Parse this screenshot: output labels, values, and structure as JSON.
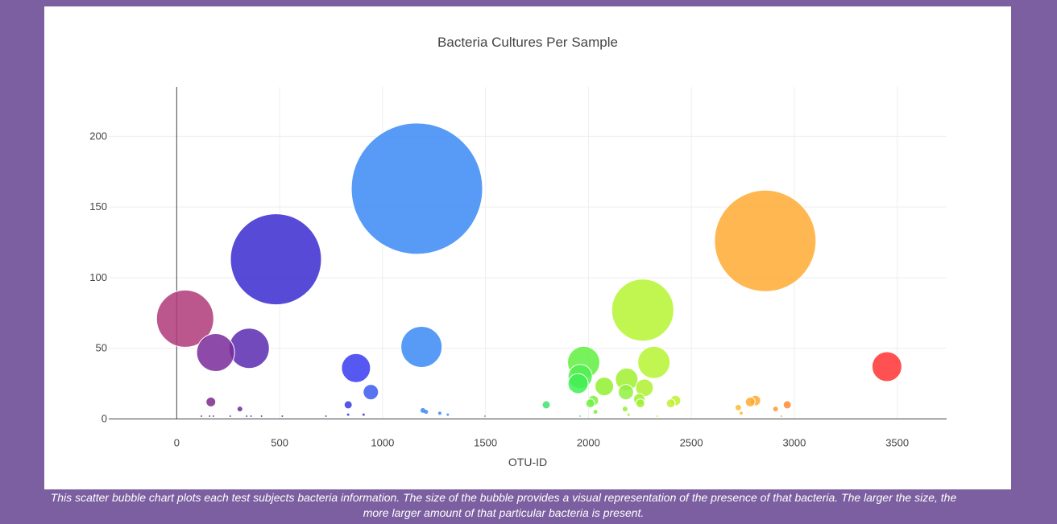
{
  "caption": "This scatter bubble chart plots each test subjects bacteria information. The size of the bubble provides a visual representation of the presence of that bacteria. The larger the size, the more larger amount of that particular bacteria is present.",
  "chart_data": {
    "type": "scatter",
    "title": "Bacteria Cultures Per Sample",
    "xlabel": "OTU-ID",
    "ylabel": "",
    "xlim": [
      -330,
      3740
    ],
    "ylim": [
      -10,
      235
    ],
    "xticks": [
      0,
      500,
      1000,
      1500,
      2000,
      2500,
      3000,
      3500
    ],
    "yticks": [
      0,
      50,
      100,
      150,
      200
    ],
    "grid": true,
    "points": [
      {
        "x": 41,
        "y": 71,
        "color": "#b03a7a"
      },
      {
        "x": 189,
        "y": 47,
        "color": "#7a2a9a"
      },
      {
        "x": 352,
        "y": 50,
        "color": "#5a2ab0"
      },
      {
        "x": 482,
        "y": 113,
        "color": "#3a2ad0"
      },
      {
        "x": 871,
        "y": 36,
        "color": "#3a3af0"
      },
      {
        "x": 943,
        "y": 19,
        "color": "#3a5af0"
      },
      {
        "x": 1167,
        "y": 163,
        "color": "#3a8af5"
      },
      {
        "x": 1189,
        "y": 51,
        "color": "#3a8af5"
      },
      {
        "x": 1977,
        "y": 40,
        "color": "#60f040"
      },
      {
        "x": 1960,
        "y": 30,
        "color": "#50f050"
      },
      {
        "x": 1950,
        "y": 25,
        "color": "#40f050"
      },
      {
        "x": 2264,
        "y": 77,
        "color": "#b5f530"
      },
      {
        "x": 2318,
        "y": 40,
        "color": "#b5f530"
      },
      {
        "x": 2186,
        "y": 28,
        "color": "#a0f030"
      },
      {
        "x": 2077,
        "y": 23,
        "color": "#90f030"
      },
      {
        "x": 2272,
        "y": 22,
        "color": "#b0f030"
      },
      {
        "x": 2182,
        "y": 19,
        "color": "#90f040"
      },
      {
        "x": 2859,
        "y": 126,
        "color": "#ffaa33"
      },
      {
        "x": 3450,
        "y": 37,
        "color": "#ff3333"
      },
      {
        "x": 166,
        "y": 12,
        "color": "#7a2a8a"
      },
      {
        "x": 307,
        "y": 7,
        "color": "#6a2a9a"
      },
      {
        "x": 833,
        "y": 10,
        "color": "#3a3ae0"
      },
      {
        "x": 1795,
        "y": 10,
        "color": "#40e070"
      },
      {
        "x": 2024,
        "y": 13,
        "color": "#80f040"
      },
      {
        "x": 2009,
        "y": 11,
        "color": "#70f040"
      },
      {
        "x": 2247,
        "y": 14,
        "color": "#a0f030"
      },
      {
        "x": 2252,
        "y": 11,
        "color": "#a0f030"
      },
      {
        "x": 2423,
        "y": 13,
        "color": "#c0f030"
      },
      {
        "x": 2400,
        "y": 11,
        "color": "#c0f030"
      },
      {
        "x": 2811,
        "y": 13,
        "color": "#ffaa33"
      },
      {
        "x": 2786,
        "y": 12,
        "color": "#ffaa33"
      },
      {
        "x": 2728,
        "y": 8,
        "color": "#ffbb33"
      },
      {
        "x": 2966,
        "y": 10,
        "color": "#ff8833"
      },
      {
        "x": 2909,
        "y": 7,
        "color": "#ff9933"
      },
      {
        "x": 2178,
        "y": 7,
        "color": "#90f030"
      },
      {
        "x": 1196,
        "y": 6,
        "color": "#3a8af5"
      },
      {
        "x": 1211,
        "y": 5,
        "color": "#3a8af5"
      },
      {
        "x": 1278,
        "y": 4,
        "color": "#3a8af5"
      },
      {
        "x": 2742,
        "y": 4,
        "color": "#ffbb33"
      },
      {
        "x": 2034,
        "y": 5,
        "color": "#80f040"
      },
      {
        "x": 908,
        "y": 3,
        "color": "#3a3ae0"
      },
      {
        "x": 833,
        "y": 3,
        "color": "#3a3ae0"
      },
      {
        "x": 120,
        "y": 2,
        "color": "#7a2a9a"
      },
      {
        "x": 160,
        "y": 2,
        "color": "#7a2a9a"
      },
      {
        "x": 178,
        "y": 2,
        "color": "#7a2a9a"
      },
      {
        "x": 260,
        "y": 2,
        "color": "#6a2a9a"
      },
      {
        "x": 340,
        "y": 2,
        "color": "#5a2ab0"
      },
      {
        "x": 361,
        "y": 2,
        "color": "#5a2ab0"
      },
      {
        "x": 412,
        "y": 2,
        "color": "#4a2ac0"
      },
      {
        "x": 513,
        "y": 2,
        "color": "#3a2ad0"
      },
      {
        "x": 725,
        "y": 2,
        "color": "#3a3ae0"
      },
      {
        "x": 1317,
        "y": 3,
        "color": "#3a8af5"
      },
      {
        "x": 1497,
        "y": 2,
        "color": "#3aa0f0"
      },
      {
        "x": 1960,
        "y": 2,
        "color": "#50f050"
      },
      {
        "x": 2195,
        "y": 3,
        "color": "#a0f030"
      },
      {
        "x": 2334,
        "y": 2,
        "color": "#b5f530"
      },
      {
        "x": 2937,
        "y": 2,
        "color": "#ff9933"
      }
    ]
  }
}
